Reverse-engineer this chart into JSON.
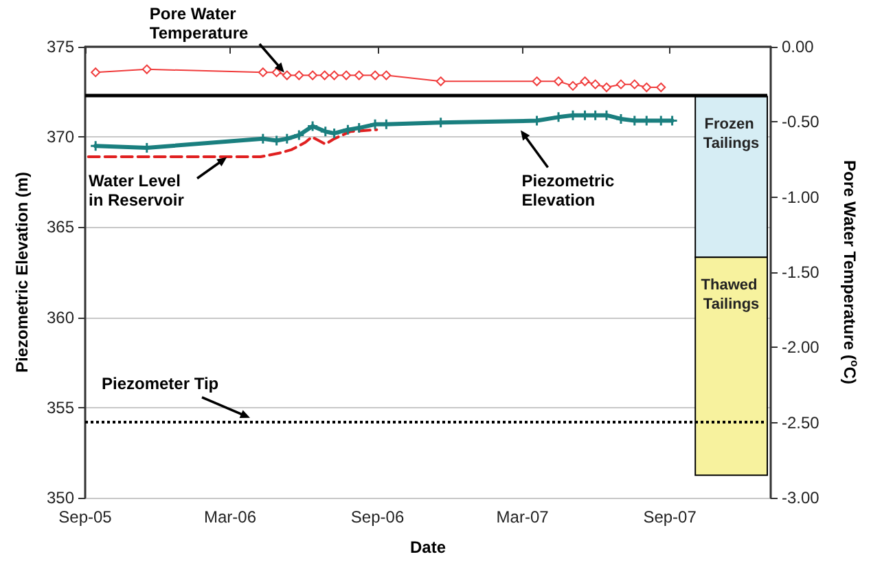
{
  "chart_data": {
    "type": "line",
    "xlabel": "Date",
    "ylabel": "Piezometric Elevation (m)",
    "y2label": "Pore Water Temperature ($^{o}$C)",
    "xlim": [
      "2005-09-01",
      "2008-01-05"
    ],
    "xticks": [
      {
        "value": "2005-09-01",
        "label": "Sep-05"
      },
      {
        "value": "2006-03-01",
        "label": "Mar-06"
      },
      {
        "value": "2006-09-01",
        "label": "Sep-06"
      },
      {
        "value": "2007-03-01",
        "label": "Mar-07"
      },
      {
        "value": "2007-09-01",
        "label": "Sep-07"
      }
    ],
    "ylim": [
      350,
      375
    ],
    "yticks": [
      350,
      355,
      360,
      365,
      370,
      375
    ],
    "y2lim": [
      -3,
      0
    ],
    "y2ticks": [
      {
        "value": 0,
        "label": "0.00"
      },
      {
        "value": -0.5,
        "label": "-0.50"
      },
      {
        "value": -1,
        "label": "-1.00"
      },
      {
        "value": -1.5,
        "label": "-1.50"
      },
      {
        "value": -2,
        "label": "-2.00"
      },
      {
        "value": -2.5,
        "label": "-2.50"
      },
      {
        "value": -3,
        "label": "-3.00"
      }
    ],
    "grid": "y",
    "series": [
      {
        "axis": "y2",
        "color": "#f03c3c",
        "marker": "diamond",
        "line_style": "solid",
        "x": [
          "2005-09-14",
          "2005-11-17",
          "2006-04-11",
          "2006-04-28",
          "2006-05-11",
          "2006-05-26",
          "2006-06-12",
          "2006-06-27",
          "2006-07-09",
          "2006-07-24",
          "2006-08-09",
          "2006-08-29",
          "2006-09-12",
          "2006-11-19",
          "2007-03-19",
          "2007-04-15",
          "2007-05-03",
          "2007-05-18",
          "2007-05-31",
          "2007-06-14",
          "2007-07-02",
          "2007-07-19",
          "2007-08-03",
          "2007-08-21"
        ],
        "values": [
          -0.17,
          -0.15,
          -0.17,
          -0.17,
          -0.19,
          -0.19,
          -0.19,
          -0.19,
          -0.19,
          -0.19,
          -0.19,
          -0.19,
          -0.19,
          -0.23,
          -0.23,
          -0.23,
          -0.26,
          -0.23,
          -0.25,
          -0.27,
          -0.25,
          -0.25,
          -0.27,
          -0.27
        ]
      },
      {
        "color": "#e02020",
        "marker": "none",
        "line_style": "dashed",
        "x": [
          "2005-09-05",
          "2006-04-08",
          "2006-05-01",
          "2006-05-17",
          "2006-06-03",
          "2006-06-11",
          "2006-06-28",
          "2006-07-09",
          "2006-07-29",
          "2006-08-31"
        ],
        "values": [
          368.9,
          368.9,
          369.1,
          369.3,
          369.7,
          370.0,
          369.6,
          369.9,
          370.3,
          370.4
        ]
      },
      {
        "color": "#1a7f7f",
        "marker": "cross",
        "line_style": "solid",
        "x": [
          "2005-09-14",
          "2005-11-17",
          "2006-04-11",
          "2006-04-28",
          "2006-05-11",
          "2006-05-26",
          "2006-06-12",
          "2006-06-28",
          "2006-07-09",
          "2006-07-26",
          "2006-08-09",
          "2006-08-29",
          "2006-09-12",
          "2006-11-19",
          "2007-03-19",
          "2007-04-15",
          "2007-05-03",
          "2007-05-18",
          "2007-05-31",
          "2007-06-14",
          "2007-07-02",
          "2007-07-19",
          "2007-08-03",
          "2007-08-21",
          "2007-09-04"
        ],
        "values": [
          369.5,
          369.4,
          369.9,
          369.8,
          369.9,
          370.1,
          370.6,
          370.3,
          370.2,
          370.4,
          370.5,
          370.7,
          370.7,
          370.8,
          370.9,
          371.1,
          371.2,
          371.2,
          371.2,
          371.2,
          371.0,
          370.9,
          370.9,
          370.9,
          370.9
        ]
      }
    ],
    "ref_lines": [
      {
        "axis": "y",
        "value": 372.3,
        "color": "#000000",
        "line_style": "solid"
      },
      {
        "axis": "y",
        "value": 354.2,
        "label": "Piezometer Tip",
        "color": "#000000",
        "line_style": "dotted"
      }
    ],
    "bands": [
      {
        "axis": "y2",
        "from": -0.33,
        "to": -1.4,
        "label": "Frozen Tailings",
        "color": "#d6edf4"
      },
      {
        "axis": "y2",
        "from": -1.4,
        "to": -2.85,
        "label": "Thawed Tailings",
        "color": "#f7f29e"
      }
    ],
    "annotations": [
      {
        "text": "Pore Water Temperature",
        "x": "2006-05-11",
        "y": 373.4
      },
      {
        "text": "Water Level in Reservoir",
        "x": "2006-03-01",
        "y": 369.0
      },
      {
        "text": "Piezometric Elevation",
        "x": "2007-02-23",
        "y": 370.6
      }
    ]
  }
}
